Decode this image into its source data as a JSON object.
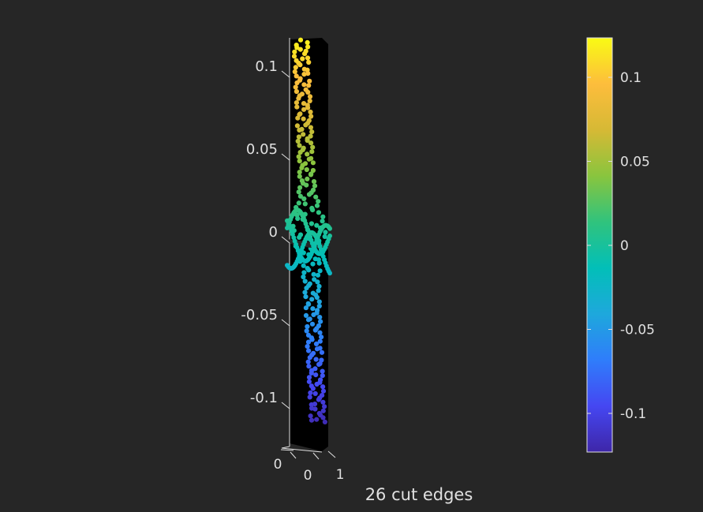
{
  "figure": {
    "background": "#262626",
    "title": "26 cut edges"
  },
  "chart_data": {
    "type": "scatter",
    "title": "26 cut edges",
    "projection": "3d",
    "axis_background": "#000000",
    "axis_color": "#e0e0e0",
    "x_ticks": [
      "0",
      "1"
    ],
    "y_ticks": [
      "0"
    ],
    "z_ticks": [
      "0.1",
      "0.05",
      "0",
      "-0.05",
      "-0.1"
    ],
    "z_tick_values": [
      0.1,
      0.05,
      0,
      -0.05,
      -0.1
    ],
    "zlim": [
      -0.12,
      0.12
    ],
    "colormap": "parula",
    "colorbar": {
      "clim": [
        -0.12,
        0.12
      ],
      "ticks": [
        "0.1",
        "0.05",
        "0",
        "-0.05",
        "-0.1"
      ],
      "tick_values": [
        0.1,
        0.05,
        0,
        -0.05,
        -0.1
      ],
      "stops": [
        "#3e26a8",
        "#4547f2",
        "#2f7dfb",
        "#1ea8dc",
        "#02bfb8",
        "#30c37d",
        "#89c53e",
        "#d6b935",
        "#fdbd3c",
        "#f9fb14"
      ]
    },
    "series": {
      "point_count": 240,
      "z_range": [
        -0.115,
        0.115
      ],
      "cut_edges": 26
    }
  }
}
